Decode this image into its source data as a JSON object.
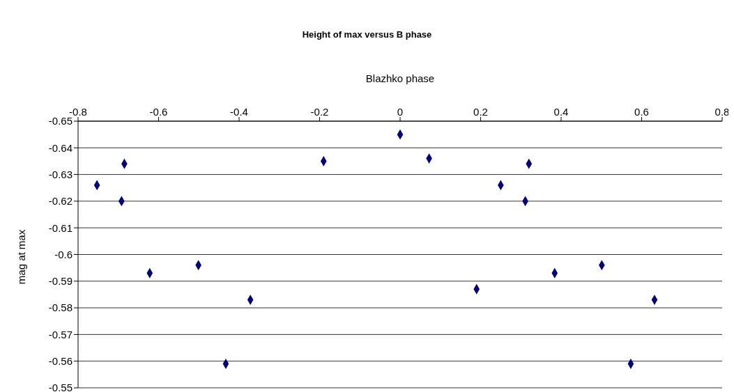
{
  "chart_data": {
    "type": "scatter",
    "title": "Height of max versus B phase",
    "xlabel": "Blazhko phase",
    "ylabel": "mag at max",
    "x": [
      -0.753,
      -0.685,
      -0.692,
      -0.622,
      -0.501,
      -0.372,
      -0.433,
      -0.19,
      0,
      0.072,
      0.19,
      0.25,
      0.311,
      0.32,
      0.384,
      0.501,
      0.632,
      0.573
    ],
    "values": [
      -0.626,
      -0.634,
      -0.62,
      -0.593,
      -0.596,
      -0.583,
      -0.559,
      -0.635,
      -0.645,
      -0.636,
      -0.587,
      -0.626,
      -0.62,
      -0.634,
      -0.593,
      -0.596,
      -0.583,
      -0.559
    ],
    "color": "#000080",
    "marker": "diamond",
    "grid": "y",
    "xlim": [
      -0.8,
      0.8
    ],
    "xticks": [
      -0.8,
      -0.6,
      -0.4,
      -0.2,
      0,
      0.2,
      0.4,
      0.6,
      0.8
    ],
    "ylim": [
      -0.55,
      -0.65
    ],
    "yticks": [
      -0.65,
      -0.64,
      -0.63,
      -0.62,
      -0.61,
      -0.6,
      -0.59,
      -0.58,
      -0.57,
      -0.56,
      -0.55
    ]
  }
}
